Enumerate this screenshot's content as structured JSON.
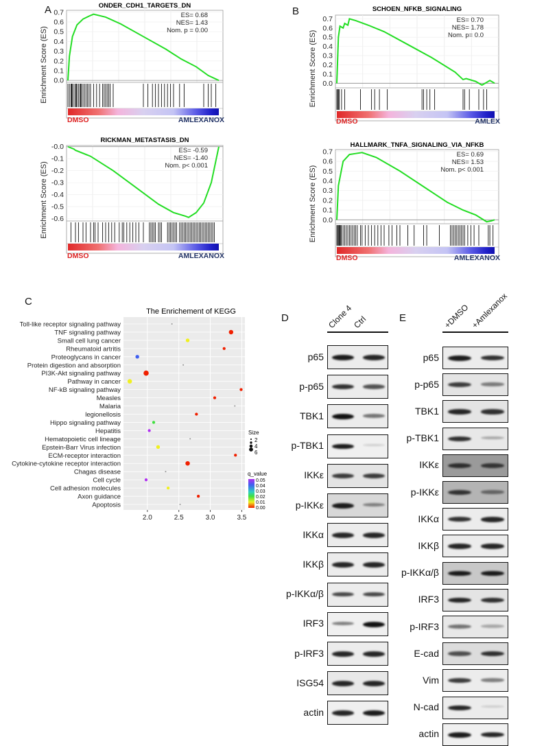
{
  "panels": {
    "A": "A",
    "B": "B",
    "C": "C",
    "D": "D",
    "E": "E"
  },
  "chart_data": [
    {
      "type": "line",
      "id": "gsea-a1",
      "title": "ONDER_CDH1_TARGETS_DN",
      "ylabel": "Enrichment Score (ES)",
      "yticks": [
        "0.7",
        "0.6",
        "0.5",
        "0.4",
        "0.3",
        "0.2",
        "0.1",
        "0.0"
      ],
      "ytick_values": [
        0.7,
        0.6,
        0.5,
        0.4,
        0.3,
        0.2,
        0.1,
        0.0
      ],
      "ylim": [
        -0.02,
        0.72
      ],
      "stats": [
        "ES= 0.68",
        "NES= 1.43",
        "Nom. p = 0.00"
      ],
      "left_label": "DMSO",
      "right_label": "AMLEXANOX",
      "curve": [
        [
          0,
          0
        ],
        [
          0.01,
          0.25
        ],
        [
          0.03,
          0.45
        ],
        [
          0.06,
          0.57
        ],
        [
          0.1,
          0.63
        ],
        [
          0.14,
          0.66
        ],
        [
          0.17,
          0.68
        ],
        [
          0.25,
          0.65
        ],
        [
          0.35,
          0.58
        ],
        [
          0.5,
          0.45
        ],
        [
          0.65,
          0.32
        ],
        [
          0.75,
          0.22
        ],
        [
          0.85,
          0.14
        ],
        [
          0.93,
          0.05
        ],
        [
          1,
          0
        ]
      ],
      "hits": [
        0.0,
        0.01,
        0.02,
        0.025,
        0.03,
        0.04,
        0.05,
        0.055,
        0.06,
        0.07,
        0.08,
        0.085,
        0.09,
        0.1,
        0.11,
        0.12,
        0.13,
        0.14,
        0.15,
        0.17,
        0.19,
        0.21,
        0.23,
        0.24,
        0.25,
        0.26,
        0.27,
        0.28,
        0.3,
        0.5,
        0.53,
        0.56,
        0.58,
        0.6,
        0.62,
        0.64,
        0.66,
        0.68,
        0.7,
        0.74,
        0.77,
        0.9,
        0.93,
        0.95,
        0.98
      ]
    },
    {
      "type": "line",
      "id": "gsea-a2",
      "title": "RICKMAN_METASTASIS_DN",
      "ylabel": "Enrichment Score (ES)",
      "yticks": [
        "-0.0",
        "-0.1",
        "-0.2",
        "-0.3",
        "-0.4",
        "-0.5",
        "-0.6"
      ],
      "ytick_values": [
        0,
        -0.1,
        -0.2,
        -0.3,
        -0.4,
        -0.5,
        -0.6
      ],
      "ylim": [
        -0.62,
        0.01
      ],
      "stats": [
        "ES= -0.59",
        "NES= -1.40",
        "Nom. p< 0.001"
      ],
      "left_label": "DMSO",
      "right_label": "AMLEXANOX",
      "curve": [
        [
          0,
          0
        ],
        [
          0.04,
          -0.02
        ],
        [
          0.05,
          -0.03
        ],
        [
          0.15,
          -0.08
        ],
        [
          0.3,
          -0.2
        ],
        [
          0.45,
          -0.34
        ],
        [
          0.6,
          -0.48
        ],
        [
          0.7,
          -0.55
        ],
        [
          0.78,
          -0.58
        ],
        [
          0.8,
          -0.59
        ],
        [
          0.85,
          -0.55
        ],
        [
          0.9,
          -0.47
        ],
        [
          0.95,
          -0.3
        ],
        [
          0.98,
          -0.12
        ],
        [
          1,
          0
        ]
      ],
      "hits": [
        0.02,
        0.05,
        0.07,
        0.1,
        0.12,
        0.15,
        0.17,
        0.18,
        0.2,
        0.23,
        0.25,
        0.27,
        0.29,
        0.31,
        0.34,
        0.36,
        0.37,
        0.39,
        0.41,
        0.43,
        0.45,
        0.47,
        0.5,
        0.54,
        0.55,
        0.56,
        0.57,
        0.58,
        0.6,
        0.61,
        0.62,
        0.66,
        0.67,
        0.68,
        0.69,
        0.7,
        0.71,
        0.72,
        0.74,
        0.75,
        0.76,
        0.77,
        0.78,
        0.79,
        0.8,
        0.81,
        0.82,
        0.83,
        0.84,
        0.85,
        0.86,
        0.87,
        0.88,
        0.89,
        0.9,
        0.91,
        0.92,
        0.93,
        0.94,
        0.95,
        0.96,
        0.97
      ]
    },
    {
      "type": "line",
      "id": "gsea-b1",
      "title": "SCHOEN_NFKB_SIGNALING",
      "ylabel": "Enrichment Score (ES)",
      "yticks": [
        "0.7",
        "0.6",
        "0.5",
        "0.4",
        "0.3",
        "0.2",
        "0.1",
        "0.0"
      ],
      "ytick_values": [
        0.7,
        0.6,
        0.5,
        0.4,
        0.3,
        0.2,
        0.1,
        0.0
      ],
      "ylim": [
        -0.05,
        0.74
      ],
      "stats": [
        "ES= 0.70",
        "NES= 1.78",
        "Nom. p= 0.0"
      ],
      "left_label": "DMSO",
      "right_label": "AMLEX",
      "curve": [
        [
          0,
          0
        ],
        [
          0.01,
          0.5
        ],
        [
          0.02,
          0.62
        ],
        [
          0.04,
          0.6
        ],
        [
          0.05,
          0.65
        ],
        [
          0.07,
          0.63
        ],
        [
          0.08,
          0.7
        ],
        [
          0.12,
          0.68
        ],
        [
          0.2,
          0.63
        ],
        [
          0.3,
          0.56
        ],
        [
          0.45,
          0.42
        ],
        [
          0.6,
          0.28
        ],
        [
          0.75,
          0.12
        ],
        [
          0.8,
          0.04
        ],
        [
          0.82,
          0.05
        ],
        [
          0.88,
          0.02
        ],
        [
          0.92,
          -0.02
        ],
        [
          0.95,
          0.01
        ],
        [
          0.97,
          0.03
        ],
        [
          1,
          0
        ]
      ],
      "hits": [
        0.0,
        0.005,
        0.01,
        0.015,
        0.03,
        0.05,
        0.15,
        0.22,
        0.24,
        0.27,
        0.32,
        0.55,
        0.54,
        0.57,
        0.59,
        0.62,
        0.8,
        0.81,
        0.84,
        0.9,
        0.93,
        0.95
      ]
    },
    {
      "type": "line",
      "id": "gsea-b2",
      "title": "HALLMARK_TNFA_SIGNALING_VIA_NFKB",
      "ylabel": "Enrichment Score (ES)",
      "yticks": [
        "0.7",
        "0.6",
        "0.5",
        "0.4",
        "0.3",
        "0.2",
        "0.1",
        "0.0"
      ],
      "ytick_values": [
        0.7,
        0.6,
        0.5,
        0.4,
        0.3,
        0.2,
        0.1,
        0.0
      ],
      "ylim": [
        -0.04,
        0.72
      ],
      "stats": [
        "ES= 0.69",
        "NES= 1.53",
        "Nom. p< 0.001"
      ],
      "left_label": "DMSO",
      "right_label": "AMLEXANOX",
      "curve": [
        [
          0,
          0
        ],
        [
          0.01,
          0.35
        ],
        [
          0.04,
          0.6
        ],
        [
          0.08,
          0.67
        ],
        [
          0.12,
          0.68
        ],
        [
          0.16,
          0.69
        ],
        [
          0.25,
          0.64
        ],
        [
          0.4,
          0.5
        ],
        [
          0.55,
          0.34
        ],
        [
          0.7,
          0.18
        ],
        [
          0.8,
          0.1
        ],
        [
          0.88,
          0.05
        ],
        [
          0.95,
          -0.02
        ],
        [
          0.98,
          -0.01
        ],
        [
          1,
          0
        ]
      ],
      "hits": [
        0.0,
        0.005,
        0.01,
        0.015,
        0.02,
        0.025,
        0.03,
        0.04,
        0.05,
        0.06,
        0.07,
        0.08,
        0.09,
        0.1,
        0.11,
        0.12,
        0.13,
        0.15,
        0.16,
        0.18,
        0.2,
        0.22,
        0.24,
        0.26,
        0.28,
        0.3,
        0.33,
        0.35,
        0.38,
        0.4,
        0.45,
        0.49,
        0.55,
        0.57,
        0.65,
        0.72,
        0.73,
        0.74,
        0.75,
        0.76,
        0.77,
        0.78,
        0.79,
        0.8,
        0.81,
        0.83,
        0.85,
        0.87,
        0.9,
        0.96,
        0.97,
        0.99
      ]
    },
    {
      "type": "scatter",
      "id": "kegg",
      "title": "The Enrichement of KEGG",
      "xticks": [
        2.0,
        2.5,
        3.0,
        3.5
      ],
      "xtick_labels": [
        "2.0",
        "2.5",
        "3.0",
        "3.5"
      ],
      "xlim": [
        1.62,
        3.55
      ],
      "categories": [
        "Toll-like receptor signaling pathway",
        "TNF signaling pathway",
        "Small cell lung cancer",
        "Rheumatoid artritis",
        "Proteoglycans in cancer",
        "Protein digestion and absorption",
        "PI3K-Akt signaling pathway",
        "Pathway in cancer",
        "NF-kB signaling pathway",
        "Measles",
        "Malaria",
        "legionellosis",
        "Hippo signaling pathway",
        "Hepatitis",
        "Hematopoietic cell lineage",
        "Epstein-Barr Virus infection",
        "ECM-receptor interaction",
        "Cytokine-cytokine receptor interaction",
        "Chagas disease",
        "Cell cycle",
        "Cell adhesion molecules",
        "Axon guidance",
        "Apoptosis"
      ],
      "x": [
        2.39,
        3.33,
        2.64,
        3.22,
        1.84,
        2.57,
        1.98,
        1.72,
        3.49,
        3.07,
        3.39,
        2.78,
        2.1,
        2.03,
        2.68,
        2.17,
        3.4,
        2.64,
        2.29,
        1.98,
        2.33,
        2.81,
        2.52
      ],
      "size": [
        1,
        5,
        4,
        3,
        4,
        1,
        6,
        5,
        3,
        3,
        1,
        3,
        3,
        3,
        1,
        4,
        3,
        5,
        1,
        3,
        3,
        3,
        1
      ],
      "q_value": [
        0.02,
        0.0,
        0.013,
        0.0,
        0.035,
        0.02,
        0.002,
        0.012,
        0.0,
        0.0,
        0.03,
        0.004,
        0.022,
        0.048,
        0.02,
        0.006,
        0.0,
        0.001,
        0.02,
        0.05,
        0.012,
        0.003,
        0.02
      ],
      "size_legend": {
        "title": "Size",
        "labels": [
          "2",
          "4",
          "6"
        ]
      },
      "q_legend": {
        "title": "q_value",
        "labels": [
          "0.05",
          "0.04",
          "0.03",
          "0.02",
          "0.01",
          "0.00"
        ]
      },
      "colors": {
        "panel_bg": "#ebebeb",
        "curve": "#22dd22"
      }
    }
  ],
  "blot_d": {
    "headers": [
      "Clone 4",
      "Ctrl"
    ],
    "rows": [
      {
        "label": "p65",
        "bands": [
          0.95,
          0.9
        ],
        "bg": "#ececec"
      },
      {
        "label": "p-p65",
        "bands": [
          0.85,
          0.7
        ],
        "bg": "#ececec"
      },
      {
        "label": "TBK1",
        "bands": [
          1.0,
          0.55
        ],
        "bg": "#ececec"
      },
      {
        "label": "p-TBK1",
        "bands": [
          0.95,
          0.15
        ],
        "bg": "#f0f0f0"
      },
      {
        "label": "IKKε",
        "bands": [
          0.8,
          0.8
        ],
        "bg": "#e4e4e4"
      },
      {
        "label": "p-IKKε",
        "bands": [
          0.95,
          0.45
        ],
        "bg": "#d8d8d8"
      },
      {
        "label": "IKKα",
        "bands": [
          0.9,
          0.9
        ],
        "bg": "#ececec"
      },
      {
        "label": "IKKβ",
        "bands": [
          0.9,
          0.9
        ],
        "bg": "#ececec"
      },
      {
        "label": "p-IKKα/β",
        "bands": [
          0.75,
          0.75
        ],
        "bg": "#ececec"
      },
      {
        "label": "IRF3",
        "bands": [
          0.5,
          1.0
        ],
        "bg": "#f0f0f0"
      },
      {
        "label": "p-IRF3",
        "bands": [
          0.9,
          0.9
        ],
        "bg": "#ececec"
      },
      {
        "label": "ISG54",
        "bands": [
          0.9,
          0.9
        ],
        "bg": "#e8e8e8"
      },
      {
        "label": "actin",
        "bands": [
          0.9,
          0.95
        ],
        "bg": "#f0f0f0"
      }
    ]
  },
  "blot_e": {
    "headers": [
      "+DMSO",
      "+Amlexanox"
    ],
    "rows": [
      {
        "label": "p65",
        "bands": [
          0.95,
          0.85
        ],
        "bg": "#ececec"
      },
      {
        "label": "p-p65",
        "bands": [
          0.8,
          0.5
        ],
        "bg": "#e4e4e4"
      },
      {
        "label": "TBK1",
        "bands": [
          0.9,
          0.85
        ],
        "bg": "#e4e4e4"
      },
      {
        "label": "p-TBK1",
        "bands": [
          0.85,
          0.3
        ],
        "bg": "#e8e8e8"
      },
      {
        "label": "IKKε",
        "bands": [
          0.8,
          0.75
        ],
        "bg": "#9a9a9a"
      },
      {
        "label": "p-IKKε",
        "bands": [
          0.8,
          0.5
        ],
        "bg": "#b4b4b4"
      },
      {
        "label": "IKKα",
        "bands": [
          0.85,
          0.9
        ],
        "bg": "#ececec"
      },
      {
        "label": "IKKβ",
        "bands": [
          0.9,
          0.9
        ],
        "bg": "#ececec"
      },
      {
        "label": "p-IKKα/β",
        "bands": [
          0.95,
          0.95
        ],
        "bg": "#c8c8c8"
      },
      {
        "label": "IRF3",
        "bands": [
          0.9,
          0.85
        ],
        "bg": "#e4e4e4"
      },
      {
        "label": "p-IRF3",
        "bands": [
          0.55,
          0.3
        ],
        "bg": "#e8e8e8"
      },
      {
        "label": "E-cad",
        "bands": [
          0.7,
          0.85
        ],
        "bg": "#dcdcdc"
      },
      {
        "label": "Vim",
        "bands": [
          0.8,
          0.5
        ],
        "bg": "#ececec"
      },
      {
        "label": "N-cad",
        "bands": [
          0.9,
          0.15
        ],
        "bg": "#ececec"
      },
      {
        "label": "actin",
        "bands": [
          0.95,
          0.9
        ],
        "bg": "#f0f0f0"
      }
    ]
  }
}
